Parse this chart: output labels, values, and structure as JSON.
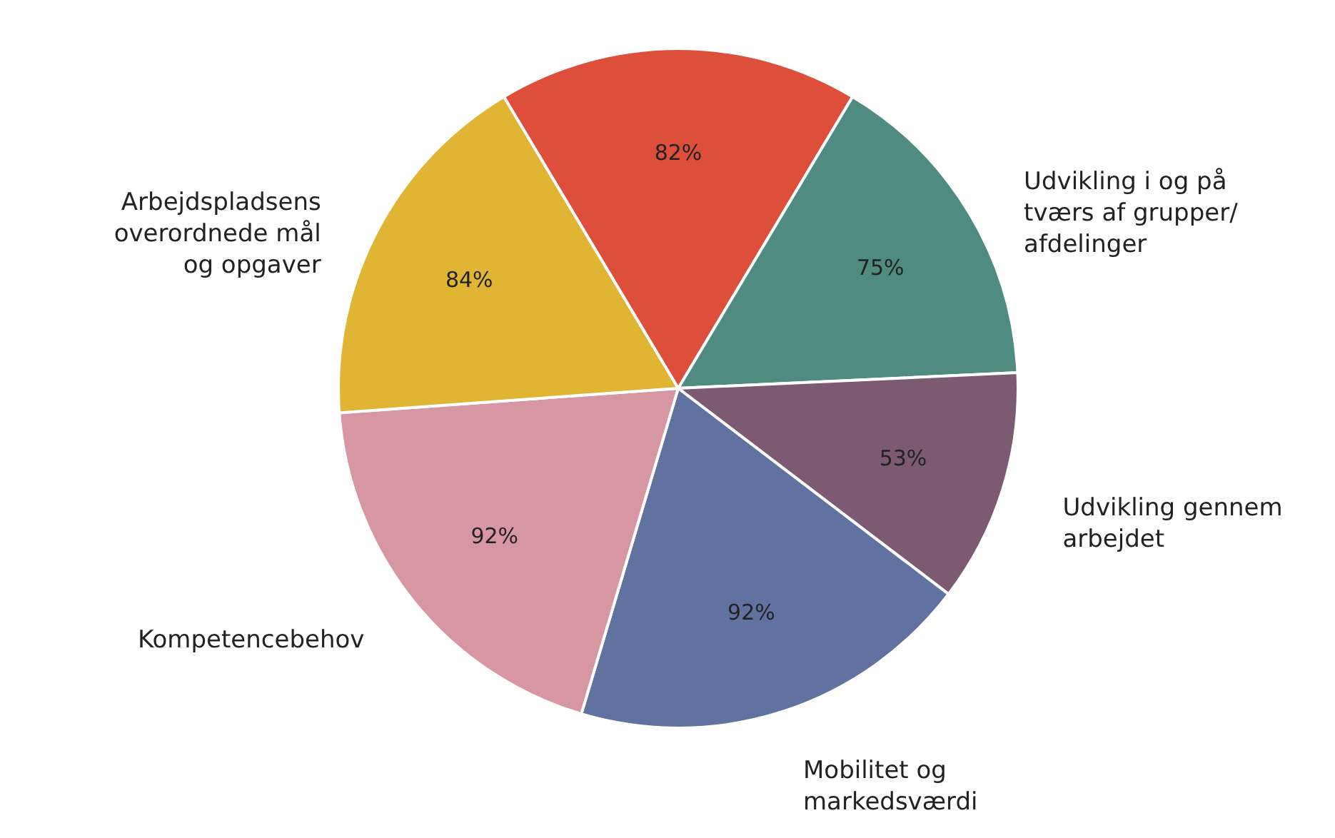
{
  "chart_data": {
    "type": "pie",
    "categories": [
      null,
      "Udvikling i og på tværs af grupper/afdelinger",
      "Udvikling gennem arbejdet",
      "Mobilitet og markedsværdi",
      "Kompetencebehov",
      "Arbejdspladsens overordnede mål og opgaver"
    ],
    "values": [
      82,
      75,
      53,
      92,
      92,
      84
    ],
    "value_labels": [
      "82%",
      "75%",
      "53%",
      "92%",
      "92%",
      "84%"
    ],
    "colors": [
      "#dd4f3a",
      "#4f8b80",
      "#7b5a72",
      "#6272a0",
      "#d697a3",
      "#e0b534"
    ]
  }
}
